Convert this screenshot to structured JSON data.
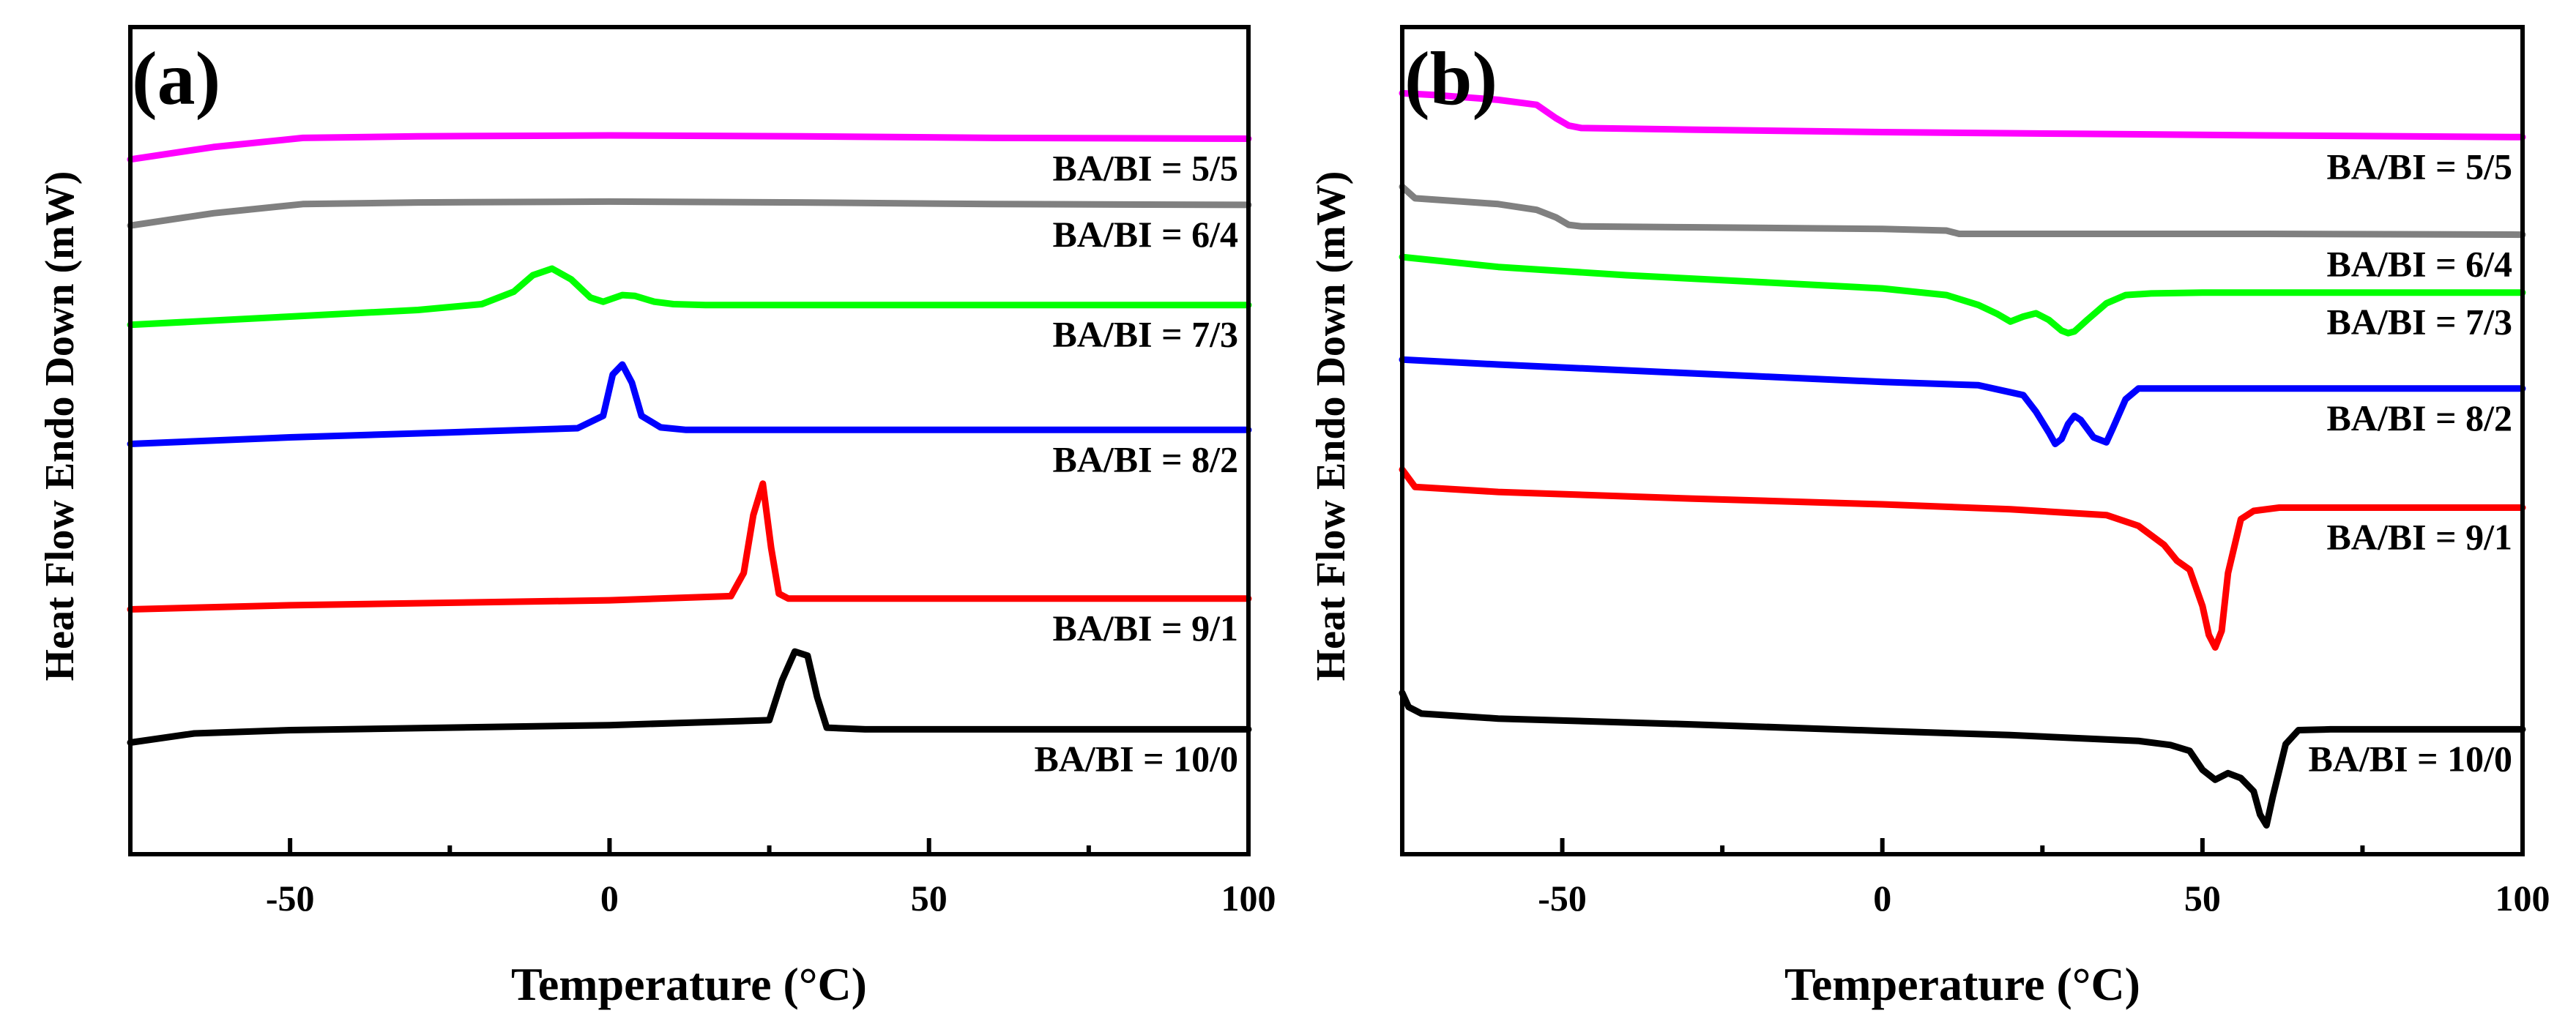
{
  "chart_data": [
    {
      "panel_label": "(a)",
      "type": "line",
      "xlabel": "Temperature (°C)",
      "ylabel": "Heat Flow Endo Down (mW)",
      "xlim": [
        -75,
        100
      ],
      "ylim": [
        0,
        100
      ],
      "xticks": [
        -50,
        0,
        50,
        100
      ],
      "xtick_labels": [
        "-50",
        "0",
        "50",
        "100"
      ],
      "series": [
        {
          "name": "BA/BI = 5/5",
          "color": "#ff00ff",
          "x": [
            -75,
            -62,
            -48,
            -30,
            0,
            30,
            60,
            100
          ],
          "y": [
            84,
            85.5,
            86.6,
            86.8,
            86.9,
            86.8,
            86.6,
            86.5
          ]
        },
        {
          "name": "BA/BI = 6/4",
          "color": "#808080",
          "x": [
            -75,
            -62,
            -48,
            -30,
            0,
            30,
            60,
            100
          ],
          "y": [
            76,
            77.5,
            78.6,
            78.8,
            78.9,
            78.8,
            78.6,
            78.5
          ]
        },
        {
          "name": "BA/BI = 7/3",
          "color": "#00ff00",
          "x": [
            -75,
            -50,
            -30,
            -20,
            -15,
            -12,
            -9,
            -6,
            -3,
            -1,
            2,
            4,
            7,
            10,
            15,
            30,
            60,
            100
          ],
          "y": [
            64,
            65,
            65.8,
            66.5,
            68,
            70,
            70.8,
            69.5,
            67.3,
            66.8,
            67.6,
            67.5,
            66.8,
            66.5,
            66.4,
            66.4,
            66.4,
            66.4
          ]
        },
        {
          "name": "BA/BI = 8/2",
          "color": "#0000ff",
          "x": [
            -75,
            -50,
            -25,
            -5,
            -1,
            0.5,
            2,
            3.5,
            5,
            8,
            12,
            30,
            60,
            100
          ],
          "y": [
            49.6,
            50.4,
            51,
            51.5,
            53,
            58,
            59.2,
            57,
            53,
            51.6,
            51.3,
            51.3,
            51.3,
            51.3
          ]
        },
        {
          "name": "BA/BI = 9/1",
          "color": "#ff0000",
          "x": [
            -75,
            -50,
            0,
            19,
            21,
            22.5,
            24,
            25.3,
            26.5,
            28,
            35,
            60,
            100
          ],
          "y": [
            29.6,
            30.1,
            30.7,
            31.2,
            34,
            41,
            44.8,
            37,
            31.5,
            30.9,
            30.9,
            30.9,
            30.9
          ]
        },
        {
          "name": "BA/BI = 10/0",
          "color": "#000000",
          "x": [
            -75,
            -65,
            -50,
            0,
            25,
            27,
            29,
            31,
            32.5,
            34,
            40,
            60,
            100
          ],
          "y": [
            13.5,
            14.6,
            15,
            15.6,
            16.2,
            21,
            24.5,
            24,
            19,
            15.3,
            15.1,
            15.1,
            15.1
          ]
        }
      ]
    },
    {
      "panel_label": "(b)",
      "type": "line",
      "xlabel": "Temperature (°C)",
      "ylabel": "Heat Flow Endo Down (mW)",
      "xlim": [
        -75,
        100
      ],
      "ylim": [
        0,
        100
      ],
      "xticks": [
        -50,
        0,
        50,
        100
      ],
      "xtick_labels": [
        "-50",
        "0",
        "50",
        "100"
      ],
      "series": [
        {
          "name": "BA/BI = 5/5",
          "color": "#ff00ff",
          "x": [
            -75,
            -70,
            -60,
            -54,
            -51,
            -49,
            -47,
            -30,
            0,
            30,
            60,
            100
          ],
          "y": [
            92,
            91.8,
            91.2,
            90.6,
            89,
            88.1,
            87.8,
            87.6,
            87.3,
            87.1,
            86.9,
            86.7
          ]
        },
        {
          "name": "BA/BI = 6/4",
          "color": "#808080",
          "x": [
            -75,
            -73,
            -60,
            -54,
            -51,
            -49,
            -47,
            -30,
            0,
            10,
            12,
            30,
            60,
            100
          ],
          "y": [
            80.7,
            79.3,
            78.6,
            77.9,
            77,
            76.1,
            75.9,
            75.8,
            75.6,
            75.4,
            75,
            75,
            75,
            74.9
          ]
        },
        {
          "name": "BA/BI = 7/3",
          "color": "#00ff00",
          "x": [
            -75,
            -60,
            -40,
            -20,
            0,
            10,
            15,
            18,
            20,
            22,
            24,
            26,
            28,
            29,
            30,
            32,
            35,
            38,
            42,
            50,
            70,
            100
          ],
          "y": [
            72.2,
            71,
            70,
            69.2,
            68.4,
            67.6,
            66.4,
            65.3,
            64.4,
            65,
            65.4,
            64.6,
            63.3,
            63,
            63.2,
            64.6,
            66.6,
            67.6,
            67.8,
            67.9,
            67.9,
            67.9
          ]
        },
        {
          "name": "BA/BI = 8/2",
          "color": "#0000ff",
          "x": [
            -75,
            -60,
            -40,
            -20,
            0,
            15,
            22,
            24,
            26,
            27,
            28,
            29,
            30,
            31,
            33,
            35,
            36,
            38,
            40,
            45,
            60,
            100
          ],
          "y": [
            59.8,
            59.2,
            58.5,
            57.8,
            57.1,
            56.7,
            55.5,
            53.5,
            51,
            49.6,
            50.2,
            52,
            53,
            52.5,
            50.4,
            49.8,
            51.5,
            55,
            56.3,
            56.3,
            56.3,
            56.3
          ]
        },
        {
          "name": "BA/BI = 9/1",
          "color": "#ff0000",
          "x": [
            -75,
            -73,
            -60,
            -30,
            0,
            20,
            35,
            40,
            44,
            46,
            48,
            50,
            51,
            52,
            53,
            54,
            56,
            58,
            62,
            70,
            100
          ],
          "y": [
            46.5,
            44.4,
            43.8,
            43,
            42.3,
            41.7,
            41,
            39.7,
            37.4,
            35.5,
            34.4,
            30,
            26.5,
            25,
            27,
            34,
            40.5,
            41.5,
            41.9,
            41.9,
            41.9
          ]
        },
        {
          "name": "BA/BI = 10/0",
          "color": "#000000",
          "x": [
            -75,
            -74,
            -72,
            -60,
            -30,
            0,
            20,
            40,
            45,
            48,
            50,
            52,
            54,
            56,
            58,
            59,
            60,
            61,
            63,
            65,
            70,
            100
          ],
          "y": [
            19.5,
            17.8,
            17,
            16.4,
            15.7,
            14.9,
            14.4,
            13.7,
            13.2,
            12.5,
            10.2,
            9,
            9.8,
            9.2,
            7.6,
            4.8,
            3.5,
            7,
            13.3,
            15,
            15.1,
            15.1
          ]
        }
      ]
    }
  ]
}
